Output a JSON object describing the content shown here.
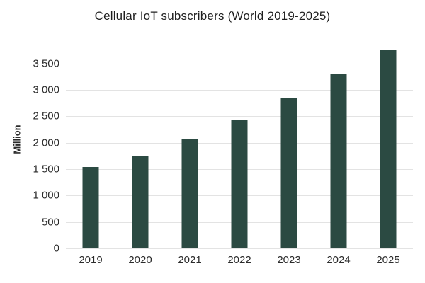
{
  "chart_data": {
    "type": "bar",
    "title": "Cellular IoT subscribers (World 2019-2025)",
    "xlabel": "",
    "ylabel": "Million",
    "categories": [
      "2019",
      "2020",
      "2021",
      "2022",
      "2023",
      "2024",
      "2025"
    ],
    "values": [
      1540,
      1740,
      2070,
      2440,
      2850,
      3300,
      3750
    ],
    "yticks": [
      0,
      500,
      1000,
      1500,
      2000,
      2500,
      3000,
      3500
    ],
    "ytick_labels": [
      "0",
      "500",
      "1 000",
      "1 500",
      "2 000",
      "2 500",
      "3 000",
      "3 500"
    ],
    "ylim": [
      0,
      3900
    ],
    "grid": true,
    "legend_position": "none",
    "bar_color": "#2b4a42",
    "grid_color": "#e3e3e3",
    "text_color": "#1f1f1f",
    "tick_color": "#2b2b2b",
    "background_color": "#ffffff"
  }
}
